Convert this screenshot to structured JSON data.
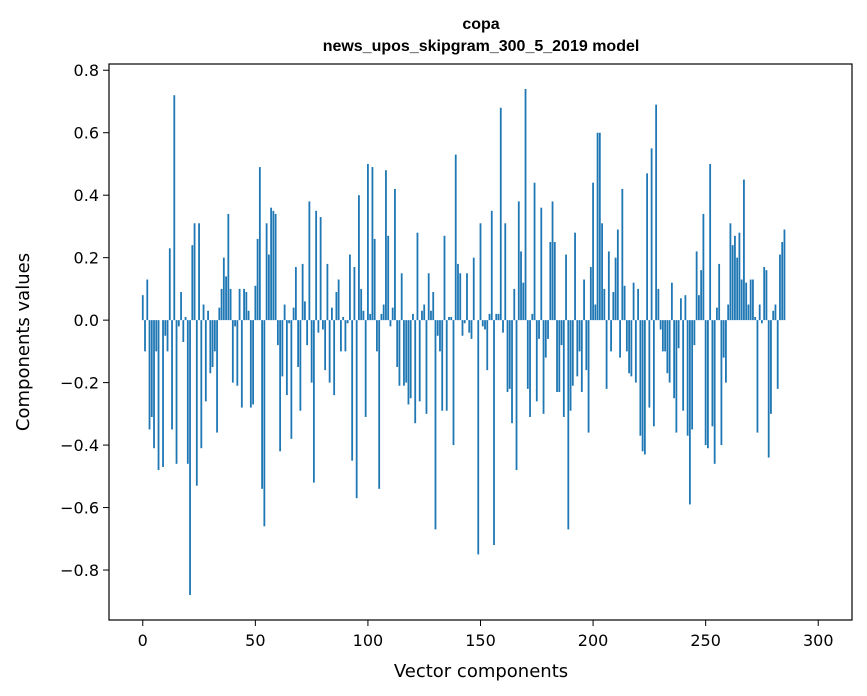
{
  "chart_data": {
    "type": "bar",
    "title": "copa",
    "subtitle": "news_upos_skipgram_300_5_2019 model",
    "xlabel": "Vector components",
    "ylabel": "Components values",
    "xlim": [
      -15,
      315
    ],
    "ylim": [
      -0.96,
      0.82
    ],
    "xticks": [
      0,
      50,
      100,
      150,
      200,
      250,
      300
    ],
    "yticks": [
      -0.8,
      -0.6,
      -0.4,
      -0.2,
      0.0,
      0.2,
      0.4,
      0.6,
      0.8
    ],
    "xtick_labels": [
      "0",
      "50",
      "100",
      "150",
      "200",
      "250",
      "300"
    ],
    "ytick_labels": [
      "−0.8",
      "−0.6",
      "−0.4",
      "−0.2",
      "0.0",
      "0.2",
      "0.4",
      "0.6",
      "0.8"
    ],
    "grid": false,
    "bar_color": "#1f77b4",
    "values": [
      0.08,
      -0.1,
      0.13,
      -0.35,
      -0.31,
      -0.41,
      -0.1,
      -0.48,
      0,
      -0.47,
      -0.05,
      -0.1,
      0.23,
      -0.35,
      0.72,
      -0.46,
      -0.02,
      0.09,
      -0.07,
      0.01,
      -0.46,
      -0.88,
      0.24,
      0.31,
      -0.53,
      0.31,
      -0.41,
      0.05,
      -0.26,
      0.03,
      -0.17,
      -0.15,
      -0.1,
      -0.36,
      0.04,
      0.1,
      0.2,
      0.14,
      0.34,
      0.1,
      -0.2,
      -0.02,
      -0.21,
      0.1,
      -0.28,
      0.1,
      0.09,
      0.03,
      -0.28,
      -0.27,
      0.11,
      0.26,
      0.49,
      -0.54,
      -0.66,
      0.31,
      0.21,
      0.36,
      0.35,
      0.34,
      -0.08,
      -0.42,
      -0.18,
      0.05,
      -0.24,
      -0.01,
      -0.38,
      0.04,
      0.17,
      -0.15,
      -0.29,
      0.18,
      0.06,
      -0.08,
      0.38,
      -0.2,
      -0.52,
      0.35,
      -0.04,
      0.33,
      -0.03,
      -0.16,
      0.18,
      -0.2,
      0.04,
      -0.24,
      0.09,
      0.13,
      -0.1,
      0.01,
      -0.1,
      -0.01,
      0.21,
      -0.45,
      0.17,
      -0.57,
      0.4,
      0.1,
      0.03,
      -0.31,
      0.5,
      0.02,
      0.49,
      0.26,
      -0.1,
      -0.54,
      0.02,
      0.05,
      0.48,
      0.27,
      -0.02,
      0.04,
      0.42,
      -0.15,
      -0.21,
      0.15,
      -0.21,
      -0.2,
      -0.27,
      -0.25,
      0.02,
      -0.33,
      0.28,
      -0.26,
      0.03,
      0.05,
      -0.3,
      0.15,
      0.03,
      0.09,
      -0.67,
      -0.05,
      -0.1,
      -0.29,
      0.27,
      -0.29,
      0.01,
      0.01,
      -0.4,
      0.53,
      0.18,
      0.15,
      -0.05,
      -0.01,
      0.15,
      -0.04,
      -0.06,
      0.2,
      0,
      -0.75,
      0.31,
      -0.02,
      -0.03,
      -0.16,
      0.02,
      0.35,
      -0.72,
      0.02,
      0.02,
      0.68,
      -0.04,
      0.31,
      -0.23,
      -0.22,
      -0.33,
      0.1,
      -0.48,
      0.38,
      0.22,
      0.12,
      0.74,
      -0.22,
      -0.31,
      0.02,
      0.44,
      -0.26,
      -0.06,
      0.36,
      -0.3,
      -0.12,
      -0.06,
      0.25,
      0.38,
      0.25,
      -0.23,
      -0.23,
      -0.08,
      -0.31,
      0.21,
      -0.67,
      -0.29,
      -0.21,
      0.28,
      -0.18,
      -0.1,
      -0.23,
      0.13,
      -0.16,
      -0.36,
      0.17,
      0.44,
      0.05,
      0.6,
      0.6,
      0.31,
      0.1,
      -0.22,
      0.22,
      -0.1,
      0.09,
      0.2,
      0.29,
      -0.12,
      0.42,
      0.11,
      -0.1,
      -0.17,
      -0.18,
      0.12,
      -0.2,
      0.1,
      -0.37,
      -0.42,
      -0.43,
      0.47,
      -0.28,
      0.55,
      -0.34,
      0.69,
      0.1,
      -0.03,
      -0.1,
      -0.1,
      -0.17,
      -0.2,
      0.12,
      -0.25,
      -0.36,
      -0.09,
      0.07,
      -0.29,
      0.08,
      -0.37,
      -0.59,
      -0.35,
      -0.08,
      0.22,
      0.08,
      0.16,
      0.34,
      -0.4,
      -0.41,
      0.5,
      -0.34,
      -0.46,
      0.04,
      0.18,
      -0.4,
      -0.12,
      -0.2,
      0.05,
      0.31,
      0.24,
      0.27,
      0.2,
      0.28,
      0.13,
      0.45,
      0.12,
      0.05,
      0.13,
      0.13,
      0.01,
      -0.36,
      0.05,
      -0.01,
      0.17,
      0.16,
      -0.44,
      -0.3,
      0.03,
      0.05,
      -0.22,
      0.21,
      0.25,
      0.29
    ]
  }
}
